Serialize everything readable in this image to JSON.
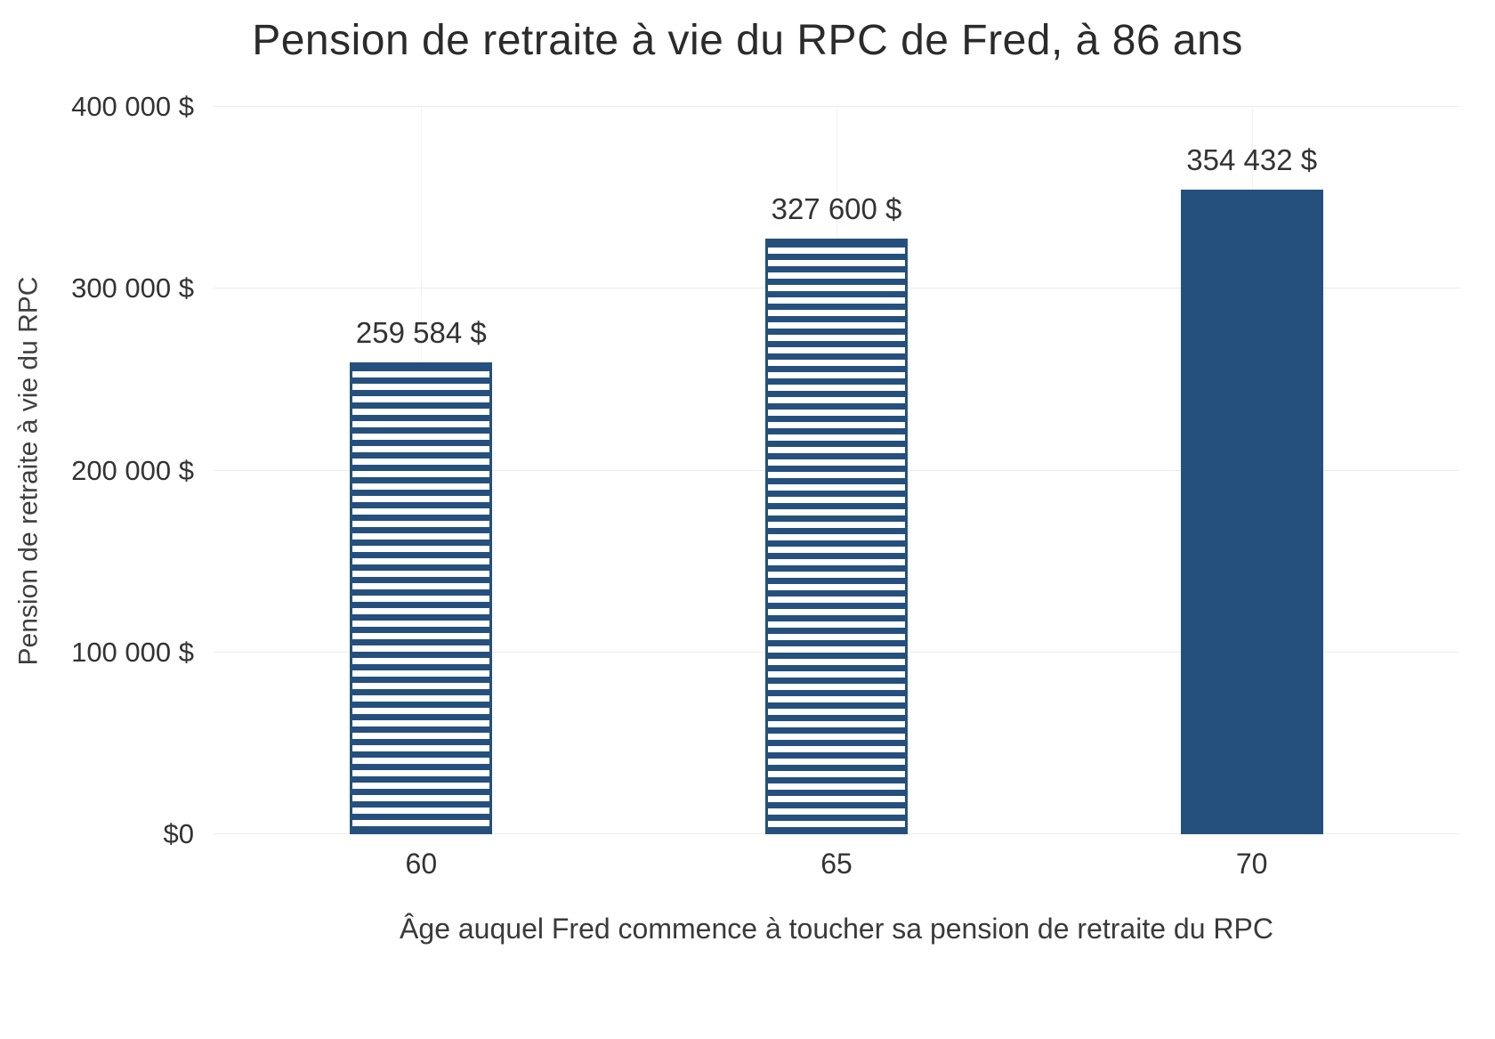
{
  "chart_data": {
    "type": "bar",
    "title": "Pension de retraite à vie du RPC de Fred, à 86 ans",
    "xlabel": "Âge auquel Fred commence à toucher sa pension de retraite du RPC",
    "ylabel": "Pension de retraite à vie du RPC",
    "categories": [
      "60",
      "65",
      "70"
    ],
    "series": [
      {
        "name": "Pension de retraite à vie du RPC",
        "values": [
          259584,
          327600,
          354432
        ],
        "value_labels": [
          "259 584 $",
          "327 600 $",
          "354 432 $"
        ],
        "styles": [
          "striped",
          "striped",
          "solid"
        ]
      }
    ],
    "ylim": [
      0,
      400000
    ],
    "y_ticks": [
      {
        "value": 0,
        "label": "$0"
      },
      {
        "value": 100000,
        "label": "100 000 $"
      },
      {
        "value": 200000,
        "label": "200 000 $"
      },
      {
        "value": 300000,
        "label": "300 000 $"
      },
      {
        "value": 400000,
        "label": "400 000 $"
      }
    ],
    "grid": true,
    "legend": "none",
    "colors": {
      "bar": "#25507E",
      "grid": "#ECECEC",
      "vgrid": "#F3F3F3",
      "text": "#333333",
      "title": "#2B2B2B"
    }
  }
}
